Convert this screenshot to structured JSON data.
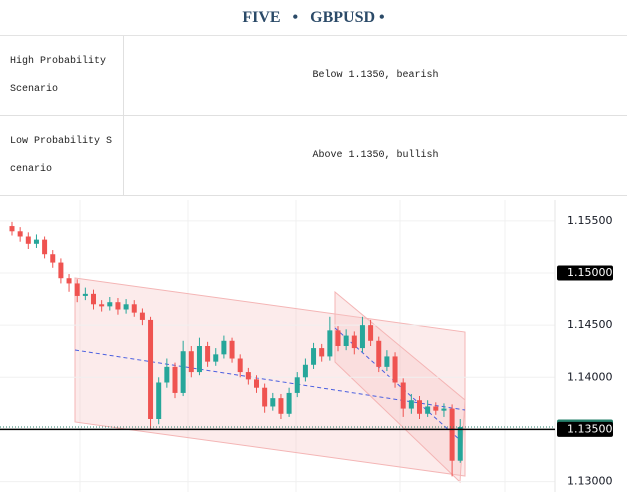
{
  "header": {
    "title": "FIVE   •   GBPUSD •"
  },
  "table": {
    "rows": [
      [
        "High Probability Scenario",
        "Below 1.1350, bearish"
      ],
      [
        "Low Probability Scenario",
        "Above 1.1350, bullish"
      ]
    ]
  },
  "chart_data": {
    "type": "candlestick",
    "up_color": "#26a69a",
    "down_color": "#ef5350",
    "ylim": [
      1.129,
      1.157
    ],
    "yticks": [
      {
        "value": 1.155,
        "label": "1.15500"
      },
      {
        "value": 1.15,
        "label": "1.15000"
      },
      {
        "value": 1.145,
        "label": "1.14500"
      },
      {
        "value": 1.14,
        "label": "1.14000"
      },
      {
        "value": 1.135,
        "label": "1.13500"
      },
      {
        "value": 1.13,
        "label": "1.13000"
      }
    ],
    "grid": true,
    "price_labels": [
      {
        "value": 1.15,
        "label": "1.15000",
        "color": "#000000"
      },
      {
        "value": 1.13523,
        "label": "1.13523",
        "color": "#26806b",
        "line": "dotted"
      },
      {
        "value": 1.135,
        "label": "1.13500",
        "color": "#000000",
        "line": "solid"
      }
    ],
    "open": [
      1.1545,
      1.154,
      1.1535,
      1.1528,
      1.1532,
      1.1518,
      1.151,
      1.1495,
      1.149,
      1.1478,
      1.148,
      1.147,
      1.1468,
      1.1472,
      1.1465,
      1.147,
      1.1462,
      1.1455,
      1.136,
      1.1395,
      1.141,
      1.1385,
      1.1425,
      1.1405,
      1.143,
      1.1415,
      1.1422,
      1.1435,
      1.1418,
      1.1405,
      1.1398,
      1.139,
      1.1372,
      1.138,
      1.1365,
      1.1385,
      1.14,
      1.1412,
      1.1428,
      1.142,
      1.1445,
      1.143,
      1.144,
      1.1428,
      1.145,
      1.1435,
      1.141,
      1.142,
      1.1395,
      1.137,
      1.1378,
      1.1365,
      1.1372,
      1.1368,
      1.137,
      1.132
    ],
    "high": [
      1.1549,
      1.1544,
      1.1539,
      1.1537,
      1.1535,
      1.1522,
      1.1514,
      1.1499,
      1.1494,
      1.1486,
      1.1484,
      1.1474,
      1.1477,
      1.1476,
      1.1475,
      1.1474,
      1.1466,
      1.1458,
      1.14,
      1.1418,
      1.1414,
      1.1435,
      1.143,
      1.1438,
      1.1434,
      1.1428,
      1.144,
      1.1438,
      1.1422,
      1.1409,
      1.1402,
      1.1394,
      1.1385,
      1.1384,
      1.139,
      1.1405,
      1.1418,
      1.1433,
      1.1432,
      1.1458,
      1.1449,
      1.1446,
      1.1444,
      1.1458,
      1.1455,
      1.1439,
      1.1426,
      1.1424,
      1.1399,
      1.1384,
      1.1382,
      1.1378,
      1.1376,
      1.1375,
      1.1374,
      1.136
    ],
    "low": [
      1.1536,
      1.153,
      1.1523,
      1.1524,
      1.1514,
      1.1505,
      1.149,
      1.1482,
      1.1472,
      1.1474,
      1.1465,
      1.1463,
      1.1464,
      1.146,
      1.1461,
      1.1458,
      1.145,
      1.135,
      1.1355,
      1.139,
      1.138,
      1.1382,
      1.14,
      1.1402,
      1.141,
      1.1411,
      1.1418,
      1.1414,
      1.14,
      1.1393,
      1.1385,
      1.1366,
      1.1368,
      1.136,
      1.1362,
      1.1381,
      1.1396,
      1.1408,
      1.1415,
      1.1416,
      1.1425,
      1.1426,
      1.1422,
      1.1424,
      1.143,
      1.1405,
      1.1406,
      1.139,
      1.1362,
      1.1365,
      1.136,
      1.1362,
      1.1364,
      1.1362,
      1.1305,
      1.1318
    ],
    "close": [
      1.154,
      1.1535,
      1.1528,
      1.1532,
      1.1518,
      1.151,
      1.1495,
      1.149,
      1.1478,
      1.148,
      1.147,
      1.1468,
      1.1472,
      1.1465,
      1.147,
      1.1462,
      1.1455,
      1.136,
      1.1395,
      1.141,
      1.1385,
      1.1425,
      1.1405,
      1.143,
      1.1415,
      1.1422,
      1.1435,
      1.1418,
      1.1405,
      1.1398,
      1.139,
      1.1372,
      1.138,
      1.1365,
      1.1385,
      1.14,
      1.1412,
      1.1428,
      1.142,
      1.1445,
      1.143,
      1.144,
      1.1428,
      1.145,
      1.1435,
      1.141,
      1.142,
      1.1395,
      1.137,
      1.1378,
      1.1365,
      1.1372,
      1.1368,
      1.137,
      1.132,
      1.13523
    ]
  }
}
